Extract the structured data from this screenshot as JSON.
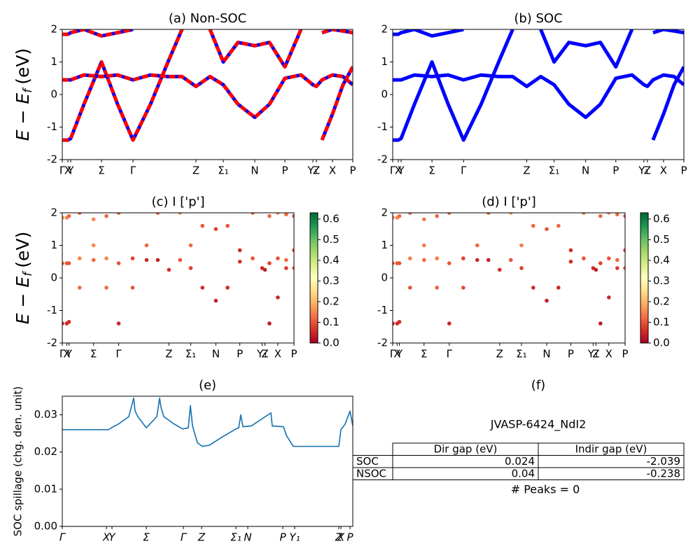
{
  "chart_data": [
    {
      "type": "line",
      "title": "(a) Non-SOC",
      "ylabel": {
        "main": "E − E",
        "sub": "f",
        "unit": "(eV)"
      },
      "x": [
        0,
        8,
        12,
        31,
        56,
        79,
        101,
        126,
        151,
        171,
        191,
        211,
        230,
        251,
        275,
        296,
        318,
        341,
        358,
        363,
        371,
        386,
        401,
        415
      ],
      "xlim": [
        0,
        415
      ],
      "ylim": [
        -2,
        2
      ],
      "yticks": [
        -2,
        -1,
        0,
        1,
        2
      ],
      "xticks": [
        {
          "value": 0,
          "label": "Γ"
        },
        {
          "value": 8,
          "label": "X"
        },
        {
          "value": 12,
          "label": "Y"
        },
        {
          "value": 56,
          "label": "Σ"
        },
        {
          "value": 101,
          "label": "Γ"
        },
        {
          "value": 191,
          "label": "Z"
        },
        {
          "value": 230,
          "label": "Σ₁"
        },
        {
          "value": 275,
          "label": "N"
        },
        {
          "value": 318,
          "label": "P"
        },
        {
          "value": 358,
          "label": "Y₁"
        },
        {
          "value": 363,
          "label": "Z"
        },
        {
          "value": 386,
          "label": "X"
        },
        {
          "value": 415,
          "label": "P"
        }
      ],
      "underlay_color": "#0000ff",
      "series": [
        {
          "color": "#ff0000",
          "values": [
            -1.4,
            -1.4,
            -1.35,
            -0.3,
            1.0,
            -0.3,
            -1.4,
            -0.3,
            1.0,
            2.0,
            null,
            null,
            null,
            null,
            null,
            null,
            null,
            null,
            null,
            null,
            -1.4,
            -0.6,
            0.3,
            0.85
          ]
        },
        {
          "color": "#ff0000",
          "values": [
            0.45,
            0.45,
            0.45,
            0.6,
            0.55,
            0.6,
            0.45,
            0.6,
            0.55,
            0.55,
            0.25,
            0.55,
            0.3,
            -0.3,
            -0.7,
            -0.3,
            0.5,
            0.6,
            0.3,
            0.25,
            0.45,
            0.6,
            0.55,
            0.3
          ]
        },
        {
          "color": "#ff0000",
          "values": [
            1.85,
            1.85,
            1.9,
            2.0,
            1.8,
            1.9,
            2.0,
            null,
            null,
            null,
            null,
            2.0,
            1.0,
            1.6,
            1.5,
            1.6,
            0.85,
            2.0,
            null,
            null,
            1.9,
            2.0,
            1.95,
            1.9
          ]
        }
      ]
    },
    {
      "type": "line",
      "title": "(b) SOC",
      "x": [
        0,
        8,
        12,
        31,
        56,
        79,
        101,
        126,
        151,
        171,
        191,
        211,
        230,
        251,
        275,
        296,
        318,
        341,
        358,
        363,
        371,
        386,
        401,
        415
      ],
      "xlim": [
        0,
        415
      ],
      "ylim": [
        -2,
        2
      ],
      "yticks": [
        -2,
        -1,
        0,
        1,
        2
      ],
      "xticks": [
        {
          "value": 0,
          "label": "Γ"
        },
        {
          "value": 8,
          "label": "X"
        },
        {
          "value": 12,
          "label": "Y"
        },
        {
          "value": 56,
          "label": "Σ"
        },
        {
          "value": 101,
          "label": "Γ"
        },
        {
          "value": 191,
          "label": "Z"
        },
        {
          "value": 230,
          "label": "Σ₁"
        },
        {
          "value": 275,
          "label": "N"
        },
        {
          "value": 318,
          "label": "P"
        },
        {
          "value": 358,
          "label": "Y₁"
        },
        {
          "value": 363,
          "label": "Z"
        },
        {
          "value": 386,
          "label": "X"
        },
        {
          "value": 415,
          "label": "P"
        }
      ],
      "series": [
        {
          "color": "#0000ff",
          "values": [
            -1.4,
            -1.4,
            -1.35,
            -0.3,
            1.0,
            -0.3,
            -1.4,
            -0.3,
            1.0,
            2.0,
            null,
            null,
            null,
            null,
            null,
            null,
            null,
            null,
            null,
            null,
            -1.4,
            -0.6,
            0.3,
            0.85
          ]
        },
        {
          "color": "#0000ff",
          "values": [
            0.45,
            0.45,
            0.45,
            0.6,
            0.55,
            0.6,
            0.45,
            0.6,
            0.55,
            0.55,
            0.25,
            0.55,
            0.3,
            -0.3,
            -0.7,
            -0.3,
            0.5,
            0.6,
            0.3,
            0.25,
            0.45,
            0.6,
            0.55,
            0.3
          ]
        },
        {
          "color": "#0000ff",
          "values": [
            1.85,
            1.85,
            1.9,
            2.0,
            1.8,
            1.9,
            2.0,
            null,
            null,
            null,
            null,
            2.0,
            1.0,
            1.6,
            1.5,
            1.6,
            0.85,
            2.0,
            null,
            null,
            1.9,
            2.0,
            1.95,
            1.9
          ]
        }
      ]
    },
    {
      "type": "scatter",
      "title": "(c)  I ['p']",
      "ylabel": {
        "main": "E − E",
        "sub": "f",
        "unit": "(eV)"
      },
      "x": [
        0,
        8,
        12,
        31,
        56,
        79,
        101,
        126,
        151,
        171,
        191,
        211,
        230,
        251,
        275,
        296,
        318,
        341,
        358,
        363,
        371,
        386,
        401,
        415
      ],
      "xlim": [
        0,
        415
      ],
      "ylim": [
        -2,
        2
      ],
      "yticks": [
        -2,
        -1,
        0,
        1,
        2
      ],
      "xticks": [
        {
          "value": 0,
          "label": "Γ"
        },
        {
          "value": 8,
          "label": "X"
        },
        {
          "value": 12,
          "label": "Y"
        },
        {
          "value": 56,
          "label": "Σ"
        },
        {
          "value": 101,
          "label": "Γ"
        },
        {
          "value": 191,
          "label": "Z"
        },
        {
          "value": 230,
          "label": "Σ₁"
        },
        {
          "value": 275,
          "label": "N"
        },
        {
          "value": 318,
          "label": "P"
        },
        {
          "value": 358,
          "label": "Y₁"
        },
        {
          "value": 363,
          "label": "Z"
        },
        {
          "value": 386,
          "label": "X"
        },
        {
          "value": 415,
          "label": "P"
        }
      ],
      "clim": [
        0,
        0.63
      ],
      "cticks": [
        {
          "value": 0,
          "label": "0.0"
        },
        0.1,
        0.2,
        0.3,
        0.4,
        0.5,
        0.6
      ],
      "colormap": "RdYlGn",
      "series": [
        {
          "values": [
            -1.4,
            -1.4,
            -1.35,
            -0.3,
            1.0,
            -0.3,
            -1.4,
            -0.3,
            1.0,
            2.0,
            null,
            null,
            null,
            null,
            null,
            null,
            null,
            null,
            null,
            null,
            -1.4,
            -0.6,
            0.3,
            0.85
          ],
          "weights": [
            0.05,
            0.05,
            0.06,
            0.12,
            0.15,
            0.12,
            0.05,
            0.1,
            0.12,
            0.1,
            null,
            null,
            null,
            null,
            null,
            null,
            null,
            null,
            null,
            null,
            0.03,
            0.05,
            0.07,
            0.08
          ]
        },
        {
          "values": [
            0.45,
            0.45,
            0.45,
            0.6,
            0.55,
            0.6,
            0.45,
            0.6,
            0.55,
            0.55,
            0.25,
            0.55,
            0.3,
            -0.3,
            -0.7,
            -0.3,
            0.5,
            0.6,
            0.3,
            0.25,
            0.45,
            0.6,
            0.55,
            0.3
          ],
          "weights": [
            0.1,
            0.1,
            0.1,
            0.15,
            0.12,
            0.15,
            0.1,
            0.08,
            0.05,
            0.04,
            0.06,
            0.1,
            0.08,
            0.05,
            0.04,
            0.05,
            0.06,
            0.1,
            0.05,
            0.04,
            0.08,
            0.1,
            0.12,
            0.1
          ]
        },
        {
          "values": [
            1.85,
            1.85,
            1.9,
            2.0,
            1.8,
            1.9,
            2.0,
            null,
            null,
            null,
            null,
            2.0,
            1.0,
            1.6,
            1.5,
            1.6,
            0.85,
            2.0,
            null,
            null,
            1.9,
            2.0,
            1.95,
            1.9
          ],
          "weights": [
            0.15,
            0.15,
            0.12,
            0.1,
            0.15,
            0.12,
            0.1,
            null,
            null,
            null,
            null,
            0.15,
            0.12,
            0.1,
            0.08,
            0.1,
            0.05,
            0.1,
            null,
            null,
            0.12,
            0.15,
            0.12,
            0.1
          ]
        }
      ]
    },
    {
      "type": "scatter",
      "title": "(d) I ['p']",
      "x": [
        0,
        8,
        12,
        31,
        56,
        79,
        101,
        126,
        151,
        171,
        191,
        211,
        230,
        251,
        275,
        296,
        318,
        341,
        358,
        363,
        371,
        386,
        401,
        415
      ],
      "xlim": [
        0,
        415
      ],
      "ylim": [
        -2,
        2
      ],
      "yticks": [
        -2,
        -1,
        0,
        1,
        2
      ],
      "xticks": [
        {
          "value": 0,
          "label": "Γ"
        },
        {
          "value": 8,
          "label": "X"
        },
        {
          "value": 12,
          "label": "Y"
        },
        {
          "value": 56,
          "label": "Σ"
        },
        {
          "value": 101,
          "label": "Γ"
        },
        {
          "value": 191,
          "label": "Z"
        },
        {
          "value": 230,
          "label": "Σ₁"
        },
        {
          "value": 275,
          "label": "N"
        },
        {
          "value": 318,
          "label": "P"
        },
        {
          "value": 358,
          "label": "Y₁"
        },
        {
          "value": 363,
          "label": "Z"
        },
        {
          "value": 386,
          "label": "X"
        },
        {
          "value": 415,
          "label": "P"
        }
      ],
      "clim": [
        0,
        0.63
      ],
      "cticks": [
        {
          "value": 0,
          "label": "0.0"
        },
        0.1,
        0.2,
        0.3,
        0.4,
        0.5,
        0.6
      ],
      "colormap": "RdYlGn",
      "series": [
        {
          "values": [
            -1.4,
            -1.4,
            -1.35,
            -0.3,
            1.0,
            -0.3,
            -1.4,
            -0.3,
            1.0,
            2.0,
            null,
            null,
            null,
            null,
            null,
            null,
            null,
            null,
            null,
            null,
            -1.4,
            -0.6,
            0.3,
            0.85
          ],
          "weights": [
            0.04,
            0.05,
            0.06,
            0.1,
            0.14,
            0.11,
            0.05,
            0.09,
            0.12,
            0.1,
            null,
            null,
            null,
            null,
            null,
            null,
            null,
            null,
            null,
            null,
            0.03,
            0.05,
            0.07,
            0.08
          ]
        },
        {
          "values": [
            0.45,
            0.45,
            0.45,
            0.6,
            0.55,
            0.6,
            0.45,
            0.6,
            0.55,
            0.55,
            0.25,
            0.55,
            0.3,
            -0.3,
            -0.7,
            -0.3,
            0.5,
            0.6,
            0.3,
            0.25,
            0.45,
            0.6,
            0.55,
            0.3
          ],
          "weights": [
            0.1,
            0.1,
            0.1,
            0.14,
            0.12,
            0.14,
            0.1,
            0.08,
            0.05,
            0.04,
            0.06,
            0.1,
            0.08,
            0.05,
            0.04,
            0.05,
            0.06,
            0.1,
            0.05,
            0.04,
            0.08,
            0.1,
            0.12,
            0.1
          ]
        },
        {
          "values": [
            1.85,
            1.85,
            1.9,
            2.0,
            1.8,
            1.9,
            2.0,
            null,
            null,
            null,
            null,
            2.0,
            1.0,
            1.6,
            1.5,
            1.6,
            0.85,
            2.0,
            null,
            null,
            1.9,
            2.0,
            1.95,
            1.9
          ],
          "weights": [
            0.14,
            0.15,
            0.12,
            0.1,
            0.14,
            0.12,
            0.1,
            null,
            null,
            null,
            null,
            0.16,
            0.14,
            0.12,
            0.1,
            0.12,
            0.06,
            0.12,
            null,
            null,
            0.12,
            0.15,
            0.12,
            0.1
          ]
        }
      ]
    },
    {
      "type": "line",
      "title": "(e)",
      "ylabel": "SOC spillage (chg. den. unit)",
      "x": [
        0,
        40,
        66,
        70,
        80,
        95,
        102,
        104,
        108,
        120,
        135,
        139,
        141,
        145,
        160,
        172,
        180,
        183,
        186,
        193,
        200,
        210,
        230,
        248,
        252,
        255,
        258,
        270,
        298,
        300,
        316,
        320,
        330,
        352,
        395,
        398,
        404,
        411,
        415
      ],
      "xlim": [
        0,
        415
      ],
      "ylim": [
        0,
        0.035
      ],
      "yticks": [
        {
          "value": 0,
          "label": "0.00"
        },
        {
          "value": 0.01,
          "label": "0.01"
        },
        {
          "value": 0.02,
          "label": "0.02"
        },
        {
          "value": 0.03,
          "label": "0.03"
        }
      ],
      "xticks": [
        {
          "value": 0,
          "label": "Γ"
        },
        {
          "value": 63,
          "label": "X"
        },
        {
          "value": 71,
          "label": "Y"
        },
        {
          "value": 120,
          "label": "Σ"
        },
        {
          "value": 173,
          "label": "Γ"
        },
        {
          "value": 199,
          "label": "Z"
        },
        {
          "value": 248,
          "label": "Σ₁"
        },
        {
          "value": 265,
          "label": "N"
        },
        {
          "value": 315,
          "label": "P"
        },
        {
          "value": 332,
          "label": "Y₁"
        },
        {
          "value": 395,
          "label": "Z"
        },
        {
          "value": 398,
          "label": "X"
        },
        {
          "value": 411,
          "label": "P"
        }
      ],
      "series": [
        {
          "color": "#1f77b4",
          "values": [
            0.026,
            0.026,
            0.026,
            0.0265,
            0.0275,
            0.0295,
            0.0345,
            0.031,
            0.0295,
            0.0265,
            0.0295,
            0.0345,
            0.032,
            0.0295,
            0.0275,
            0.0262,
            0.0265,
            0.0325,
            0.027,
            0.0225,
            0.0215,
            0.0218,
            0.0242,
            0.0262,
            0.0265,
            0.03,
            0.0268,
            0.027,
            0.0305,
            0.027,
            0.0268,
            0.0245,
            0.0215,
            0.0215,
            0.0215,
            0.026,
            0.0275,
            0.031,
            0.027
          ]
        }
      ]
    },
    {
      "type": "table",
      "title": "(f)",
      "subtitle": "JVASP-6424_NdI2",
      "columns": [
        "Dir gap (eV)",
        "Indir gap (eV)"
      ],
      "rows": [
        {
          "label": "SOC",
          "values": [
            0.024,
            -2.039
          ]
        },
        {
          "label": "NSOC",
          "values": [
            0.04,
            -0.238
          ]
        }
      ],
      "footer": "# Peaks = 0"
    }
  ]
}
